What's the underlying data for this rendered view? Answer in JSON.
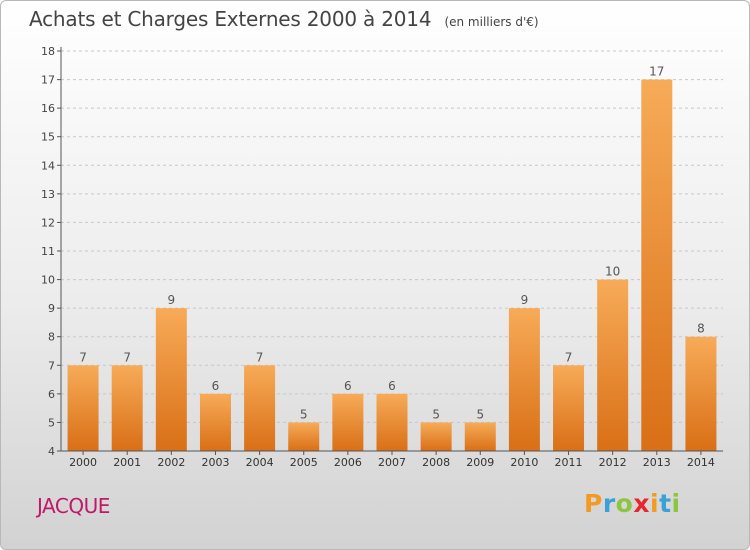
{
  "header": {
    "title": "Achats et Charges Externes 2000 à 2014",
    "unit": "(en milliers d'€)"
  },
  "footer": {
    "commune": "JACQUE",
    "logo": {
      "letters": [
        "P",
        "r",
        "o",
        "x",
        "i",
        "t",
        "i"
      ],
      "colors": [
        "#f29a22",
        "#3aa0d8",
        "#8cc63f",
        "#e8262b",
        "#f29a22",
        "#3aa0d8",
        "#8cc63f"
      ]
    }
  },
  "colors": {
    "bar_light": "#f7ab58",
    "bar_dark": "#d96f16",
    "axis": "#555555",
    "grid": "#c8c8c8"
  },
  "chart_data": {
    "type": "bar",
    "categories": [
      "2000",
      "2001",
      "2002",
      "2003",
      "2004",
      "2005",
      "2006",
      "2007",
      "2008",
      "2009",
      "2010",
      "2011",
      "2012",
      "2013",
      "2014"
    ],
    "values": [
      7,
      7,
      9,
      6,
      7,
      5,
      6,
      6,
      5,
      5,
      9,
      7,
      10,
      17,
      8
    ],
    "data_labels": [
      "7",
      "7",
      "9",
      "6",
      "7",
      "5",
      "6",
      "6",
      "5",
      "5",
      "9",
      "7",
      "10",
      "17",
      "8"
    ],
    "ylim": [
      4,
      18
    ],
    "yticks": [
      "4",
      "5",
      "6",
      "7",
      "8",
      "9",
      "10",
      "11",
      "12",
      "13",
      "14",
      "15",
      "16",
      "17",
      "18"
    ],
    "grid": "dashed horizontal",
    "legend": "none"
  }
}
